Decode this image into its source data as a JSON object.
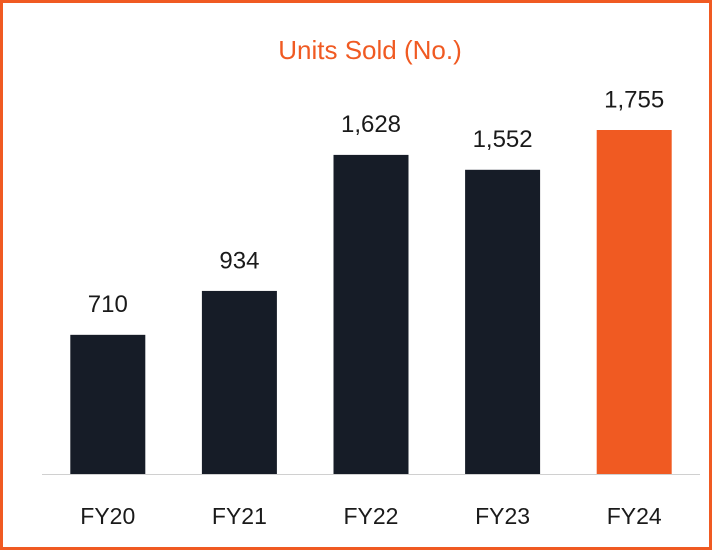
{
  "chart_data": {
    "type": "bar",
    "title": "Units Sold (No.)",
    "categories": [
      "FY20",
      "FY21",
      "FY22",
      "FY23",
      "FY24"
    ],
    "values": [
      710,
      934,
      1628,
      1552,
      1755
    ],
    "value_labels": [
      "710",
      "934",
      "1,628",
      "1,552",
      "1,755"
    ],
    "colors": [
      "#161c27",
      "#161c27",
      "#161c27",
      "#161c27",
      "#f05a22"
    ]
  }
}
